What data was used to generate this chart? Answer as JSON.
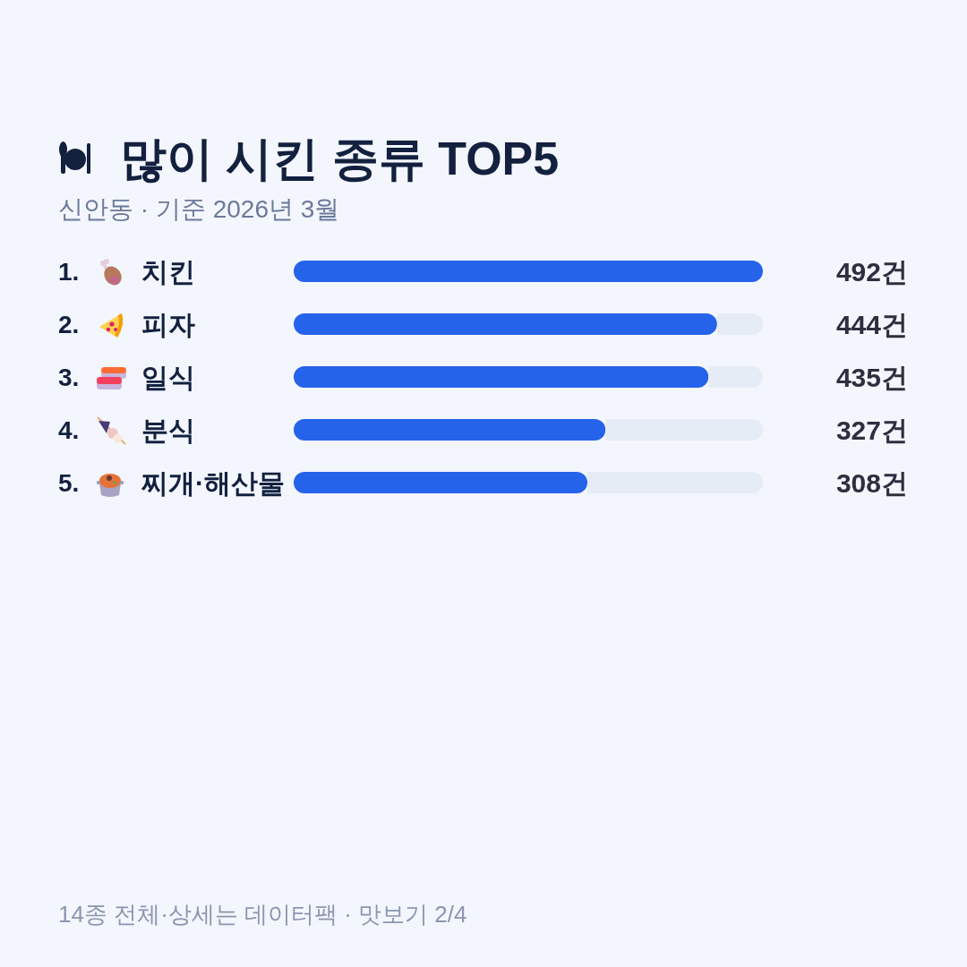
{
  "chart_data": {
    "type": "bar",
    "orientation": "horizontal",
    "stacked": true,
    "title": "많이 시킨 종류 TOP5",
    "subtitle": "신안동 · 기준 2026년 3월",
    "categories": [
      "1. 치킨",
      "2. 피자",
      "3. 일식",
      "4. 분식",
      "5. 찌개·해산물"
    ],
    "series": [
      {
        "color": "#2563eb",
        "values": [
          492,
          444,
          435,
          327,
          308
        ],
        "value_labels": [
          "492건",
          "444건",
          "435건",
          "327건",
          "308건"
        ]
      },
      {
        "color": "#e6ecf6",
        "values": [
          0,
          48,
          57,
          165,
          184
        ]
      }
    ],
    "xlim": [
      0,
      492
    ],
    "tick_labels": "y",
    "annotations": [
      "14종 전체·상세는 데이터팩 · 맛보기 2/4"
    ]
  }
}
